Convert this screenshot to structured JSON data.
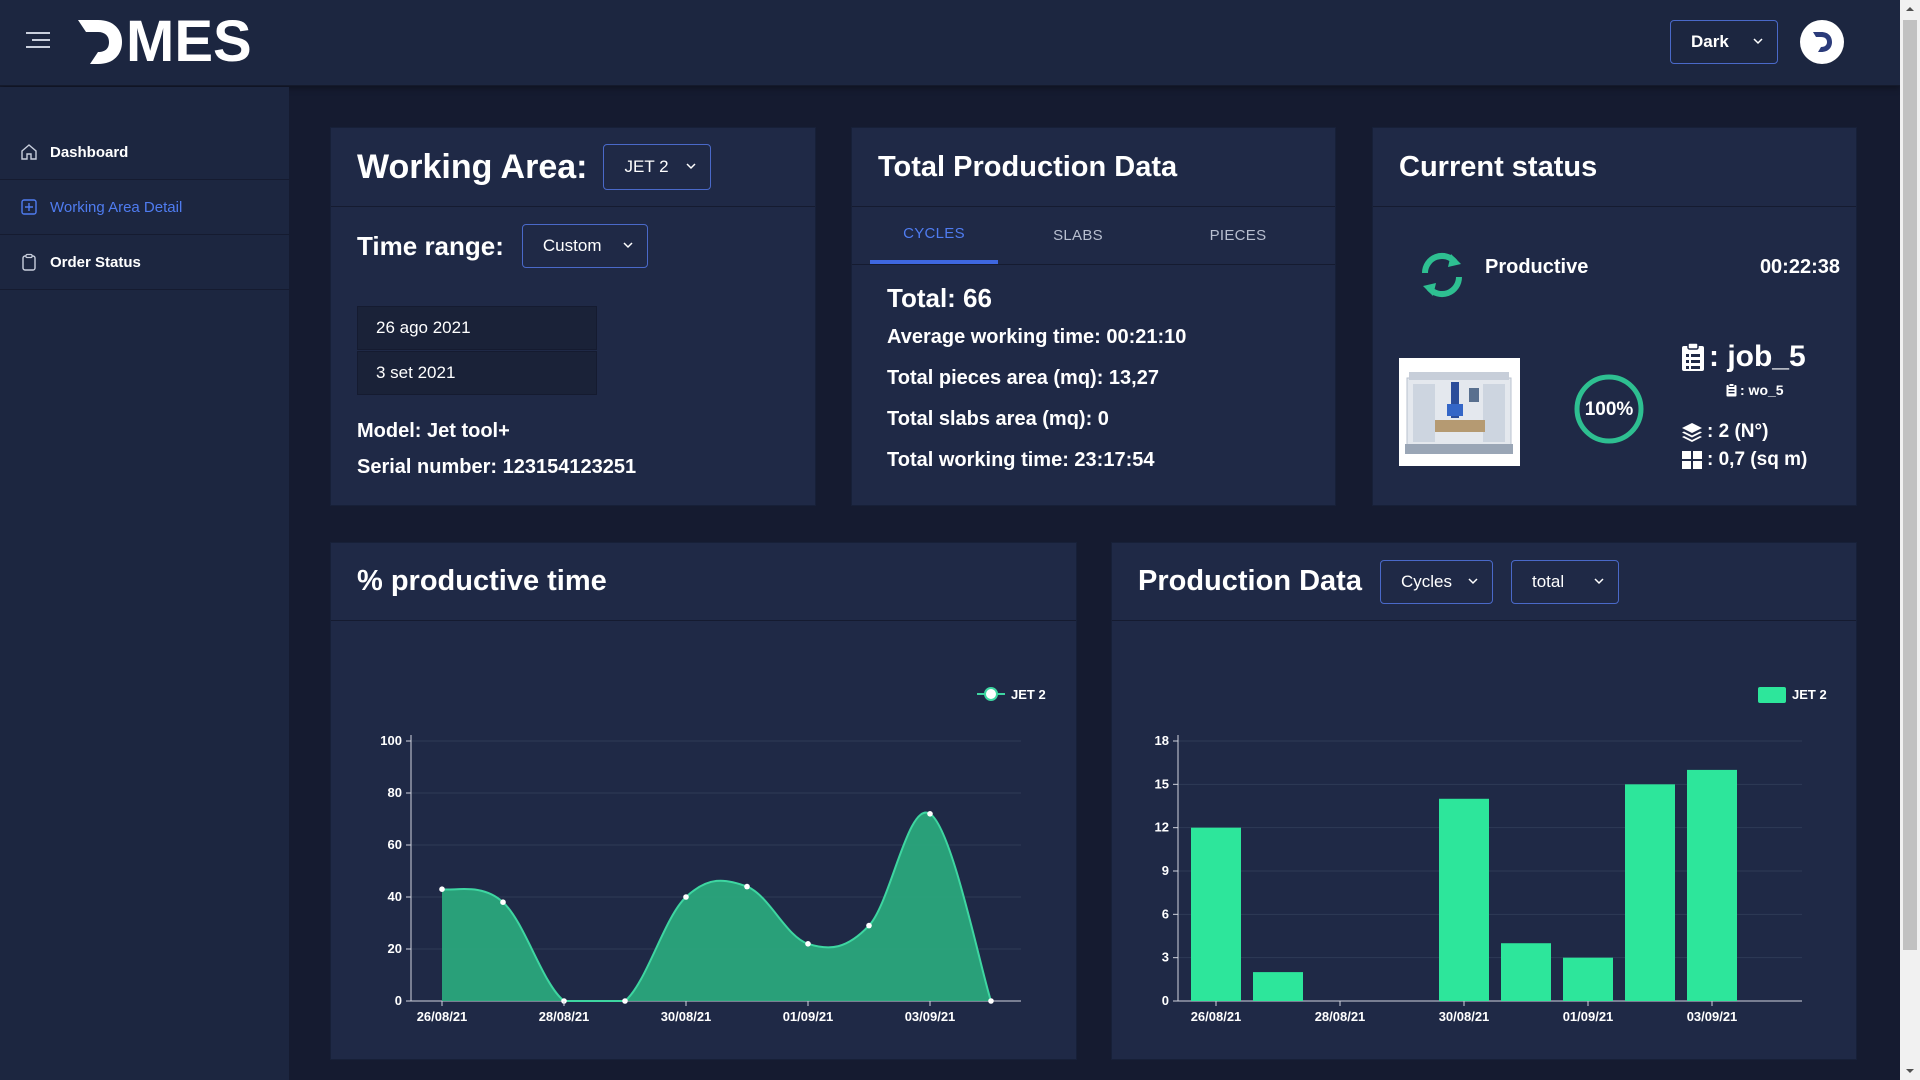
{
  "app": {
    "logo_text": "MES",
    "theme_value": "Dark"
  },
  "sidebar": {
    "items": [
      {
        "label": "Dashboard",
        "icon": "home-icon"
      },
      {
        "label": "Working Area Detail",
        "icon": "plus-square-icon"
      },
      {
        "label": "Order Status",
        "icon": "clipboard-icon"
      }
    ]
  },
  "working_area": {
    "title": "Working Area:",
    "selected": "JET 2",
    "time_range_label": "Time range:",
    "time_range_value": "Custom",
    "date_from": "26 ago 2021",
    "date_to": "3 set 2021",
    "model": "Model: Jet tool+",
    "serial": "Serial number: 123154123251"
  },
  "total_production": {
    "title": "Total Production Data",
    "tabs": [
      "CYCLES",
      "SLABS",
      "PIECES"
    ],
    "active_tab": "CYCLES",
    "total": "Total: 66",
    "avg_time": "Average working time: 00:21:10",
    "pieces_area": "Total pieces area (mq): 13,27",
    "slabs_area": "Total slabs area (mq): 0",
    "working_time": "Total working time: 23:17:54"
  },
  "current_status": {
    "title": "Current status",
    "state": "Productive",
    "elapsed": "00:22:38",
    "progress": "100%",
    "progress_value": 100,
    "job": ": job_5",
    "work_order": ": wo_5",
    "count": ": 2 (N°)",
    "area": ": 0,7 (sq m)",
    "accent": "#2ebf91"
  },
  "productive_time": {
    "title": "% productive time",
    "chart_data": {
      "type": "area",
      "title": "% productive time",
      "series": [
        {
          "name": "JET 2",
          "values": [
            43,
            38,
            0,
            0,
            40,
            44,
            22,
            29,
            72,
            0
          ]
        }
      ],
      "x": [
        "26/08/21",
        "27/08/21",
        "28/08/21",
        "29/08/21",
        "30/08/21",
        "31/08/21",
        "01/09/21",
        "02/09/21",
        "03/09/21",
        "04/09/21"
      ],
      "tick_labels": [
        "26/08/21",
        "28/08/21",
        "30/08/21",
        "01/09/21",
        "03/09/21"
      ],
      "yticks": [
        "0",
        "20",
        "40",
        "60",
        "80",
        "100"
      ],
      "ylim": [
        0,
        100
      ],
      "legend": "top-right",
      "color": "#2aaa7e"
    }
  },
  "production_data": {
    "title": "Production Data",
    "metric": "Cycles",
    "aggregation": "total",
    "chart_data": {
      "type": "bar",
      "title": "Production Data",
      "categories": [
        "26/08/21",
        "27/08/21",
        "28/08/21",
        "29/08/21",
        "30/08/21",
        "31/08/21",
        "01/09/21",
        "02/09/21",
        "03/09/21"
      ],
      "tick_labels": [
        "26/08/21",
        "28/08/21",
        "30/08/21",
        "01/09/21",
        "03/09/21"
      ],
      "series": [
        {
          "name": "JET 2",
          "values": [
            12,
            2,
            0,
            0,
            14,
            4,
            3,
            15,
            16
          ]
        }
      ],
      "yticks": [
        "0",
        "3",
        "6",
        "9",
        "12",
        "15",
        "18"
      ],
      "ylim": [
        0,
        18
      ],
      "legend": "top-right",
      "color": "#2de69b"
    }
  }
}
